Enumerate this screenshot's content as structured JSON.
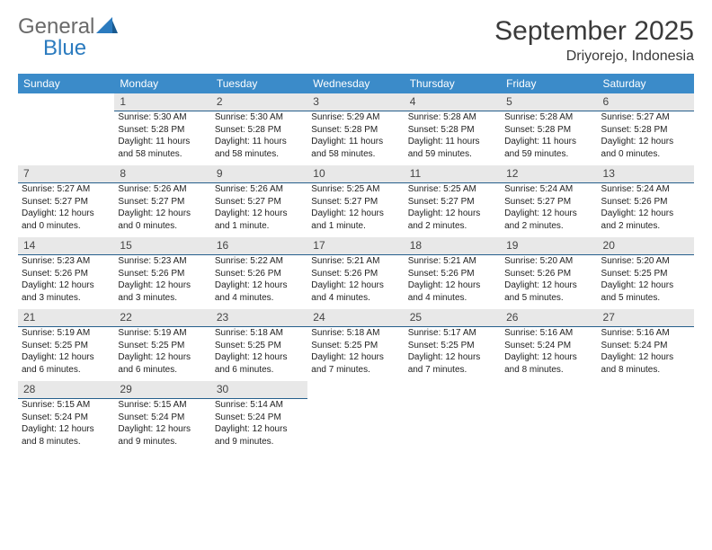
{
  "logo": {
    "general": "General",
    "blue": "Blue"
  },
  "title": "September 2025",
  "subtitle": "Driyorejo, Indonesia",
  "header_bg": "#3b8bc9",
  "daynum_bg": "#e8e8e8",
  "daynum_border": "#265f8c",
  "weekdays": [
    "Sunday",
    "Monday",
    "Tuesday",
    "Wednesday",
    "Thursday",
    "Friday",
    "Saturday"
  ],
  "weeks": [
    [
      null,
      {
        "n": "1",
        "sr": "Sunrise: 5:30 AM",
        "ss": "Sunset: 5:28 PM",
        "d1": "Daylight: 11 hours",
        "d2": "and 58 minutes."
      },
      {
        "n": "2",
        "sr": "Sunrise: 5:30 AM",
        "ss": "Sunset: 5:28 PM",
        "d1": "Daylight: 11 hours",
        "d2": "and 58 minutes."
      },
      {
        "n": "3",
        "sr": "Sunrise: 5:29 AM",
        "ss": "Sunset: 5:28 PM",
        "d1": "Daylight: 11 hours",
        "d2": "and 58 minutes."
      },
      {
        "n": "4",
        "sr": "Sunrise: 5:28 AM",
        "ss": "Sunset: 5:28 PM",
        "d1": "Daylight: 11 hours",
        "d2": "and 59 minutes."
      },
      {
        "n": "5",
        "sr": "Sunrise: 5:28 AM",
        "ss": "Sunset: 5:28 PM",
        "d1": "Daylight: 11 hours",
        "d2": "and 59 minutes."
      },
      {
        "n": "6",
        "sr": "Sunrise: 5:27 AM",
        "ss": "Sunset: 5:28 PM",
        "d1": "Daylight: 12 hours",
        "d2": "and 0 minutes."
      }
    ],
    [
      {
        "n": "7",
        "sr": "Sunrise: 5:27 AM",
        "ss": "Sunset: 5:27 PM",
        "d1": "Daylight: 12 hours",
        "d2": "and 0 minutes."
      },
      {
        "n": "8",
        "sr": "Sunrise: 5:26 AM",
        "ss": "Sunset: 5:27 PM",
        "d1": "Daylight: 12 hours",
        "d2": "and 0 minutes."
      },
      {
        "n": "9",
        "sr": "Sunrise: 5:26 AM",
        "ss": "Sunset: 5:27 PM",
        "d1": "Daylight: 12 hours",
        "d2": "and 1 minute."
      },
      {
        "n": "10",
        "sr": "Sunrise: 5:25 AM",
        "ss": "Sunset: 5:27 PM",
        "d1": "Daylight: 12 hours",
        "d2": "and 1 minute."
      },
      {
        "n": "11",
        "sr": "Sunrise: 5:25 AM",
        "ss": "Sunset: 5:27 PM",
        "d1": "Daylight: 12 hours",
        "d2": "and 2 minutes."
      },
      {
        "n": "12",
        "sr": "Sunrise: 5:24 AM",
        "ss": "Sunset: 5:27 PM",
        "d1": "Daylight: 12 hours",
        "d2": "and 2 minutes."
      },
      {
        "n": "13",
        "sr": "Sunrise: 5:24 AM",
        "ss": "Sunset: 5:26 PM",
        "d1": "Daylight: 12 hours",
        "d2": "and 2 minutes."
      }
    ],
    [
      {
        "n": "14",
        "sr": "Sunrise: 5:23 AM",
        "ss": "Sunset: 5:26 PM",
        "d1": "Daylight: 12 hours",
        "d2": "and 3 minutes."
      },
      {
        "n": "15",
        "sr": "Sunrise: 5:23 AM",
        "ss": "Sunset: 5:26 PM",
        "d1": "Daylight: 12 hours",
        "d2": "and 3 minutes."
      },
      {
        "n": "16",
        "sr": "Sunrise: 5:22 AM",
        "ss": "Sunset: 5:26 PM",
        "d1": "Daylight: 12 hours",
        "d2": "and 4 minutes."
      },
      {
        "n": "17",
        "sr": "Sunrise: 5:21 AM",
        "ss": "Sunset: 5:26 PM",
        "d1": "Daylight: 12 hours",
        "d2": "and 4 minutes."
      },
      {
        "n": "18",
        "sr": "Sunrise: 5:21 AM",
        "ss": "Sunset: 5:26 PM",
        "d1": "Daylight: 12 hours",
        "d2": "and 4 minutes."
      },
      {
        "n": "19",
        "sr": "Sunrise: 5:20 AM",
        "ss": "Sunset: 5:26 PM",
        "d1": "Daylight: 12 hours",
        "d2": "and 5 minutes."
      },
      {
        "n": "20",
        "sr": "Sunrise: 5:20 AM",
        "ss": "Sunset: 5:25 PM",
        "d1": "Daylight: 12 hours",
        "d2": "and 5 minutes."
      }
    ],
    [
      {
        "n": "21",
        "sr": "Sunrise: 5:19 AM",
        "ss": "Sunset: 5:25 PM",
        "d1": "Daylight: 12 hours",
        "d2": "and 6 minutes."
      },
      {
        "n": "22",
        "sr": "Sunrise: 5:19 AM",
        "ss": "Sunset: 5:25 PM",
        "d1": "Daylight: 12 hours",
        "d2": "and 6 minutes."
      },
      {
        "n": "23",
        "sr": "Sunrise: 5:18 AM",
        "ss": "Sunset: 5:25 PM",
        "d1": "Daylight: 12 hours",
        "d2": "and 6 minutes."
      },
      {
        "n": "24",
        "sr": "Sunrise: 5:18 AM",
        "ss": "Sunset: 5:25 PM",
        "d1": "Daylight: 12 hours",
        "d2": "and 7 minutes."
      },
      {
        "n": "25",
        "sr": "Sunrise: 5:17 AM",
        "ss": "Sunset: 5:25 PM",
        "d1": "Daylight: 12 hours",
        "d2": "and 7 minutes."
      },
      {
        "n": "26",
        "sr": "Sunrise: 5:16 AM",
        "ss": "Sunset: 5:24 PM",
        "d1": "Daylight: 12 hours",
        "d2": "and 8 minutes."
      },
      {
        "n": "27",
        "sr": "Sunrise: 5:16 AM",
        "ss": "Sunset: 5:24 PM",
        "d1": "Daylight: 12 hours",
        "d2": "and 8 minutes."
      }
    ],
    [
      {
        "n": "28",
        "sr": "Sunrise: 5:15 AM",
        "ss": "Sunset: 5:24 PM",
        "d1": "Daylight: 12 hours",
        "d2": "and 8 minutes."
      },
      {
        "n": "29",
        "sr": "Sunrise: 5:15 AM",
        "ss": "Sunset: 5:24 PM",
        "d1": "Daylight: 12 hours",
        "d2": "and 9 minutes."
      },
      {
        "n": "30",
        "sr": "Sunrise: 5:14 AM",
        "ss": "Sunset: 5:24 PM",
        "d1": "Daylight: 12 hours",
        "d2": "and 9 minutes."
      },
      null,
      null,
      null,
      null
    ]
  ]
}
